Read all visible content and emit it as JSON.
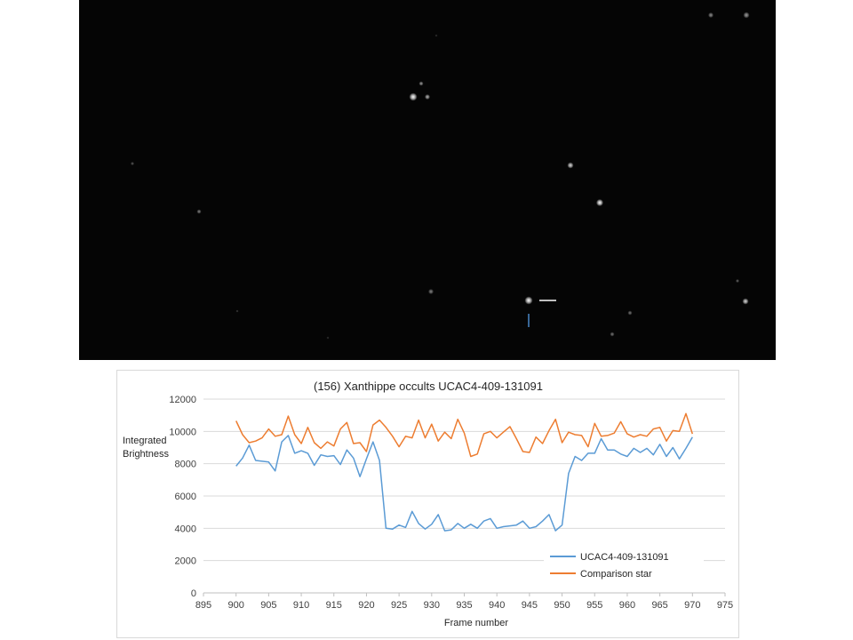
{
  "starfield": {
    "background": "#050505",
    "target_marker_color": "#ffffff",
    "comparison_marker_color": "#4a86c6"
  },
  "chart_data": {
    "type": "line",
    "title": "(156) Xanthippe occults UCAC4-409-131091",
    "xlabel": "Frame number",
    "ylabel": [
      "Integrated",
      "Brightness"
    ],
    "xlim": [
      895,
      975
    ],
    "ylim": [
      0,
      12000
    ],
    "xticks": [
      895,
      900,
      905,
      910,
      915,
      920,
      925,
      930,
      935,
      940,
      945,
      950,
      955,
      960,
      965,
      970,
      975
    ],
    "yticks": [
      0,
      2000,
      4000,
      6000,
      8000,
      10000,
      12000
    ],
    "grid": true,
    "legend_position": "bottom-right",
    "x": [
      900,
      901,
      902,
      903,
      904,
      905,
      906,
      907,
      908,
      909,
      910,
      911,
      912,
      913,
      914,
      915,
      916,
      917,
      918,
      919,
      920,
      921,
      922,
      923,
      924,
      925,
      926,
      927,
      928,
      929,
      930,
      931,
      932,
      933,
      934,
      935,
      936,
      937,
      938,
      939,
      940,
      941,
      942,
      943,
      944,
      945,
      946,
      947,
      948,
      949,
      950,
      951,
      952,
      953,
      954,
      955,
      956,
      957,
      958,
      959,
      960,
      961,
      962,
      963,
      964,
      965,
      966,
      967,
      968,
      969,
      970
    ],
    "series": [
      {
        "name": "UCAC4-409-131091",
        "color": "#5b9bd5",
        "values": [
          7850,
          8350,
          9150,
          8200,
          8150,
          8100,
          7550,
          9350,
          9750,
          8650,
          8800,
          8650,
          7900,
          8550,
          8450,
          8500,
          7950,
          8850,
          8350,
          7200,
          8300,
          9350,
          8200,
          4000,
          3950,
          4200,
          4050,
          5050,
          4300,
          3950,
          4250,
          4850,
          3850,
          3900,
          4300,
          4000,
          4250,
          4000,
          4450,
          4600,
          4000,
          4100,
          4150,
          4200,
          4450,
          4000,
          4100,
          4450,
          4850,
          3850,
          4200,
          7400,
          8450,
          8200,
          8650,
          8650,
          9550,
          8850,
          8850,
          8600,
          8450,
          8950,
          8700,
          8950,
          8550,
          9200,
          8450,
          9000,
          8300,
          8950,
          9650
        ]
      },
      {
        "name": "Comparison star",
        "color": "#ed7d31",
        "values": [
          10650,
          9800,
          9300,
          9400,
          9600,
          10150,
          9700,
          9800,
          10950,
          9800,
          9250,
          10250,
          9300,
          8950,
          9350,
          9100,
          10150,
          10550,
          9250,
          9300,
          8750,
          10400,
          10700,
          10250,
          9700,
          9050,
          9700,
          9600,
          10700,
          9600,
          10450,
          9400,
          9950,
          9550,
          10750,
          9900,
          8450,
          8600,
          9850,
          10000,
          9600,
          9950,
          10300,
          9550,
          8750,
          8700,
          9650,
          9250,
          10050,
          10750,
          9300,
          9950,
          9800,
          9750,
          9050,
          10500,
          9700,
          9750,
          9900,
          10600,
          9850,
          9650,
          9800,
          9700,
          10150,
          10250,
          9400,
          10050,
          10000,
          11100,
          9850
        ]
      }
    ]
  }
}
